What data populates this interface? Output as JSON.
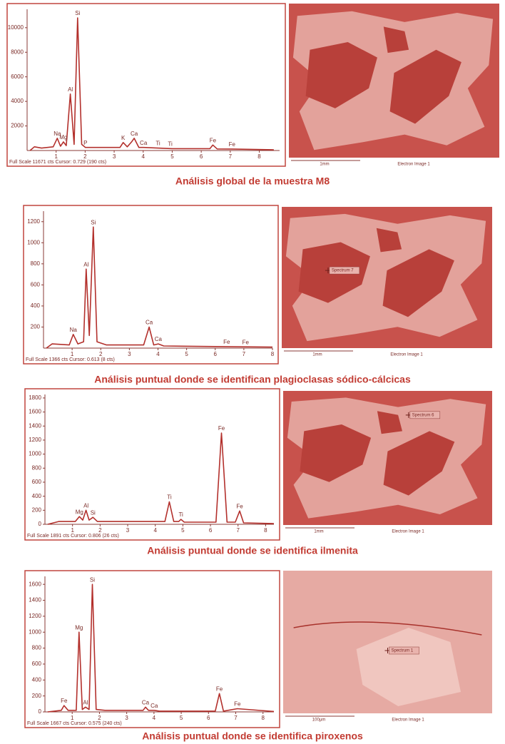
{
  "chart_data": [
    {
      "type": "line",
      "color": "#b3302c",
      "caption": "Análisis global de la muestra M8",
      "footer": "Full Scale 11671 cts Cursor: 0.729 (190 cts)",
      "x": [
        0.1,
        0.25,
        0.5,
        0.9,
        1.04,
        1.15,
        1.25,
        1.35,
        1.49,
        1.62,
        1.74,
        1.88,
        2.01,
        2.5,
        3.2,
        3.31,
        3.45,
        3.6,
        3.69,
        3.85,
        4.01,
        4.51,
        5.0,
        6.3,
        6.4,
        6.55,
        7.06,
        8.5
      ],
      "values": [
        0,
        300,
        200,
        300,
        1000,
        350,
        700,
        400,
        4600,
        500,
        10800,
        500,
        250,
        250,
        250,
        650,
        300,
        700,
        1000,
        250,
        250,
        200,
        150,
        150,
        450,
        130,
        120,
        60
      ],
      "xlim": [
        0,
        8.7
      ],
      "xticks": [
        1,
        2,
        3,
        4,
        5,
        6,
        7,
        8
      ],
      "ylim": [
        0,
        11500
      ],
      "yticks": [
        2000,
        4000,
        6000,
        8000,
        10000
      ],
      "annotations": [
        {
          "text": "Na",
          "x": 1.04
        },
        {
          "text": "Mg",
          "x": 1.25
        },
        {
          "text": "Al",
          "x": 1.49
        },
        {
          "text": "Si",
          "x": 1.74
        },
        {
          "text": "P",
          "x": 2.01
        },
        {
          "text": "K",
          "x": 3.31
        },
        {
          "text": "Ca",
          "x": 3.69
        },
        {
          "text": "Ca",
          "x": 4.01
        },
        {
          "text": "Ti",
          "x": 4.51
        },
        {
          "text": "Ti",
          "x": 4.93
        },
        {
          "text": "Fe",
          "x": 6.4
        },
        {
          "text": "Fe",
          "x": 7.06
        }
      ],
      "image": {
        "scale_label": "1mm",
        "image_label": "Electron Image 1"
      }
    },
    {
      "type": "line",
      "color": "#b3302c",
      "caption": "Análisis puntual donde se identifican plagioclasas sódico-cálcicas",
      "footer": "Full Scale 1366 cts Cursor: 0.613 (8 cts)",
      "x": [
        0.1,
        0.3,
        0.9,
        1.04,
        1.2,
        1.4,
        1.49,
        1.6,
        1.74,
        1.87,
        2.2,
        3.5,
        3.69,
        3.85,
        4.01,
        4.2,
        6.0,
        8.0
      ],
      "values": [
        0,
        40,
        30,
        130,
        40,
        60,
        750,
        120,
        1150,
        60,
        30,
        30,
        200,
        30,
        40,
        20,
        15,
        10
      ],
      "xlim": [
        0,
        8
      ],
      "xticks": [
        1,
        2,
        3,
        4,
        5,
        6,
        7,
        8
      ],
      "ylim": [
        0,
        1300
      ],
      "yticks": [
        200,
        400,
        600,
        800,
        1000,
        1200
      ],
      "annotations": [
        {
          "text": "Na",
          "x": 1.04
        },
        {
          "text": "Al",
          "x": 1.49
        },
        {
          "text": "Si",
          "x": 1.74
        },
        {
          "text": "Ca",
          "x": 3.69
        },
        {
          "text": "Ca",
          "x": 4.01
        },
        {
          "text": "Fe",
          "x": 6.4
        },
        {
          "text": "Fe",
          "x": 7.06
        }
      ],
      "image": {
        "spectrum_label": "Spectrum 7",
        "scale_label": "1mm",
        "image_label": "Electron Image 1"
      }
    },
    {
      "type": "line",
      "color": "#b3302c",
      "caption": "Análisis puntual donde se identifica ilmenita",
      "footer": "Full Scale 1891 cts Cursor: 0.806 (26 cts)",
      "x": [
        0.1,
        0.5,
        1.1,
        1.25,
        1.37,
        1.49,
        1.6,
        1.74,
        1.9,
        3.0,
        4.35,
        4.51,
        4.67,
        4.85,
        4.93,
        5.05,
        6.2,
        6.4,
        6.6,
        6.9,
        7.06,
        7.2,
        8.3
      ],
      "values": [
        0,
        40,
        40,
        110,
        60,
        200,
        60,
        100,
        40,
        40,
        40,
        320,
        40,
        40,
        70,
        30,
        30,
        1300,
        30,
        30,
        190,
        20,
        10
      ],
      "xlim": [
        0,
        8.3
      ],
      "xticks": [
        1,
        2,
        3,
        4,
        5,
        6,
        7,
        8
      ],
      "ylim": [
        0,
        1850
      ],
      "yticks": [
        0,
        200,
        400,
        600,
        800,
        1000,
        1200,
        1400,
        1600,
        1800
      ],
      "annotations": [
        {
          "text": "Mg",
          "x": 1.25
        },
        {
          "text": "Al",
          "x": 1.49
        },
        {
          "text": "Si",
          "x": 1.74
        },
        {
          "text": "Ti",
          "x": 4.51
        },
        {
          "text": "Ti",
          "x": 4.93
        },
        {
          "text": "Fe",
          "x": 6.4
        },
        {
          "text": "Fe",
          "x": 7.06
        }
      ],
      "image": {
        "spectrum_label": "Spectrum 6",
        "scale_label": "1mm",
        "image_label": "Electron Image 1"
      }
    },
    {
      "type": "line",
      "color": "#b3302c",
      "caption": "Análisis puntual donde se identifica piroxenos",
      "footer": "Full Scale 1667 cts Cursor: 0.575 (240 cts)",
      "x": [
        0.1,
        0.6,
        0.7,
        0.85,
        1.15,
        1.25,
        1.37,
        1.49,
        1.62,
        1.74,
        1.88,
        2.2,
        3.6,
        3.69,
        3.8,
        4.01,
        4.2,
        6.25,
        6.4,
        6.55,
        7.06,
        8.4
      ],
      "values": [
        0,
        20,
        80,
        20,
        20,
        1000,
        30,
        60,
        30,
        1600,
        30,
        20,
        20,
        60,
        20,
        20,
        10,
        10,
        230,
        10,
        40,
        5
      ],
      "xlim": [
        0,
        8.4
      ],
      "xticks": [
        1,
        2,
        3,
        4,
        5,
        6,
        7,
        8
      ],
      "ylim": [
        0,
        1700
      ],
      "yticks": [
        0,
        200,
        400,
        600,
        800,
        1000,
        1200,
        1400,
        1600
      ],
      "annotations": [
        {
          "text": "Fe",
          "x": 0.7
        },
        {
          "text": "Mg",
          "x": 1.25
        },
        {
          "text": "Al",
          "x": 1.49
        },
        {
          "text": "Si",
          "x": 1.74
        },
        {
          "text": "Ca",
          "x": 3.69
        },
        {
          "text": "Ca",
          "x": 4.01
        },
        {
          "text": "Fe",
          "x": 6.4
        },
        {
          "text": "Fe",
          "x": 7.06
        }
      ],
      "image": {
        "spectrum_label": "Spectrum 1",
        "scale_label": "100µm",
        "image_label": "Electron Image 1"
      }
    }
  ]
}
